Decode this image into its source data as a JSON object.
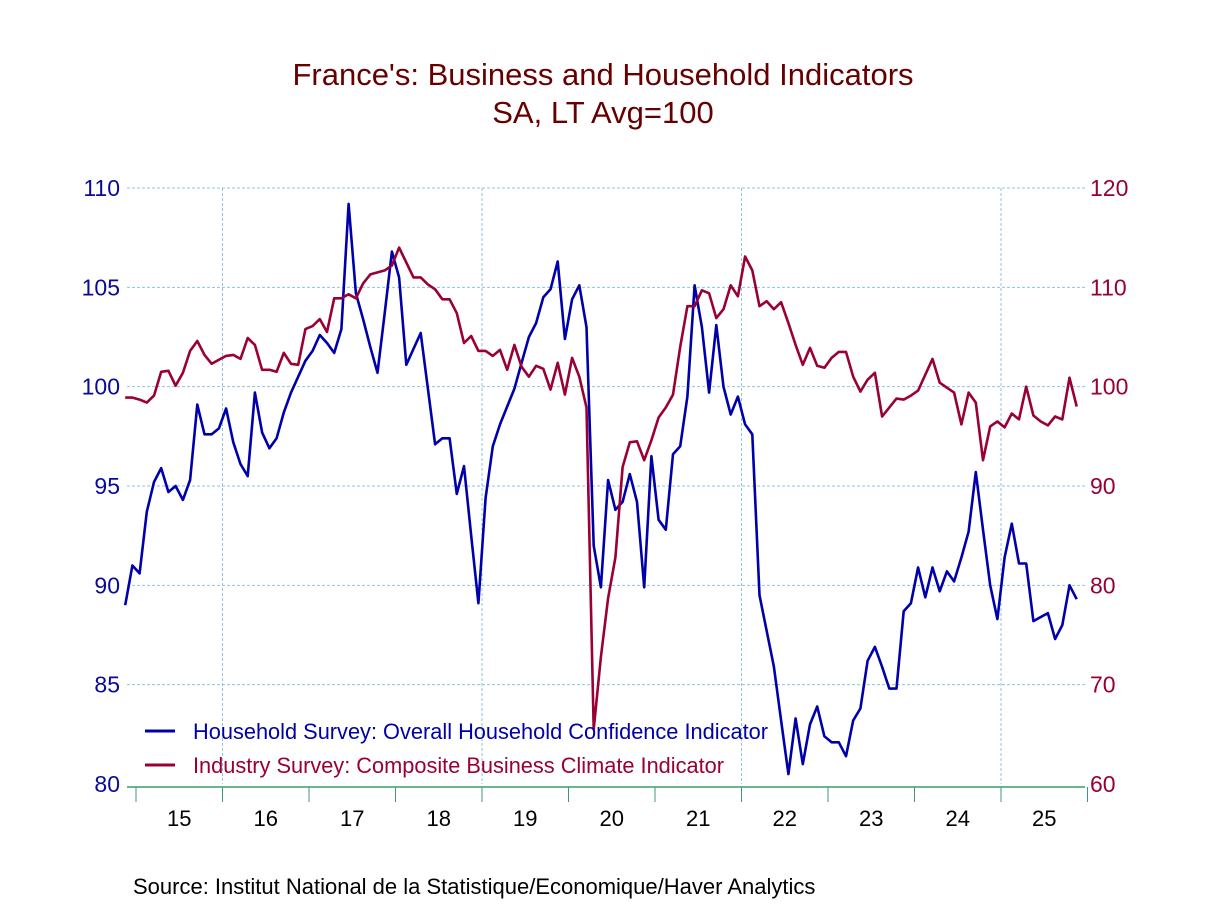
{
  "chart_data": {
    "type": "line",
    "title": "France's: Business and Household Indicators",
    "subtitle": "SA, LT Avg=100",
    "source": "Source:  Institut National de la Statistique/Economique/Haver Analytics",
    "grid": true,
    "legend_position": "bottom-left",
    "left_axis": {
      "ylim": [
        80,
        110
      ],
      "ticks": [
        "80",
        "85",
        "90",
        "95",
        "100",
        "105",
        "110"
      ],
      "color": "#0a0a9a"
    },
    "right_axis": {
      "ylim": [
        60,
        120
      ],
      "ticks": [
        "60",
        "70",
        "80",
        "90",
        "100",
        "110",
        "120"
      ],
      "color": "#990033"
    },
    "x_tick_labels": [
      "15",
      "16",
      "17",
      "18",
      "19",
      "20",
      "21",
      "22",
      "23",
      "24",
      "25"
    ],
    "x": [
      "2014-11",
      "2014-12",
      "2015-01",
      "2015-02",
      "2015-03",
      "2015-04",
      "2015-05",
      "2015-06",
      "2015-07",
      "2015-08",
      "2015-09",
      "2015-10",
      "2015-11",
      "2015-12",
      "2016-01",
      "2016-02",
      "2016-03",
      "2016-04",
      "2016-05",
      "2016-06",
      "2016-07",
      "2016-08",
      "2016-09",
      "2016-10",
      "2016-11",
      "2016-12",
      "2017-01",
      "2017-02",
      "2017-03",
      "2017-04",
      "2017-05",
      "2017-06",
      "2017-07",
      "2017-08",
      "2017-09",
      "2017-10",
      "2017-11",
      "2017-12",
      "2018-01",
      "2018-02",
      "2018-03",
      "2018-04",
      "2018-05",
      "2018-06",
      "2018-07",
      "2018-08",
      "2018-09",
      "2018-10",
      "2018-11",
      "2018-12",
      "2019-01",
      "2019-02",
      "2019-03",
      "2019-04",
      "2019-05",
      "2019-06",
      "2019-07",
      "2019-08",
      "2019-09",
      "2019-10",
      "2019-11",
      "2019-12",
      "2020-01",
      "2020-02",
      "2020-03",
      "2020-04",
      "2020-05",
      "2020-06",
      "2020-07",
      "2020-08",
      "2020-09",
      "2020-10",
      "2020-11",
      "2020-12",
      "2021-01",
      "2021-02",
      "2021-03",
      "2021-04",
      "2021-05",
      "2021-06",
      "2021-07",
      "2021-08",
      "2021-09",
      "2021-10",
      "2021-11",
      "2021-12",
      "2022-01",
      "2022-02",
      "2022-03",
      "2022-04",
      "2022-05",
      "2022-06",
      "2022-07",
      "2022-08",
      "2022-09",
      "2022-10",
      "2022-11",
      "2022-12",
      "2023-01",
      "2023-02",
      "2023-03",
      "2023-04",
      "2023-05",
      "2023-06",
      "2023-07",
      "2023-08",
      "2023-09",
      "2023-10",
      "2023-11",
      "2023-12",
      "2024-01",
      "2024-02",
      "2024-03",
      "2024-04",
      "2024-05",
      "2024-06",
      "2024-07",
      "2024-08",
      "2024-09",
      "2024-10",
      "2024-11",
      "2024-12",
      "2025-01",
      "2025-02",
      "2025-03",
      "2025-04",
      "2025-05",
      "2025-06",
      "2025-07",
      "2025-08",
      "2025-09",
      "2025-10",
      "2025-11"
    ],
    "series": [
      {
        "name": "Household Survey: Overall Household Confidence Indicator",
        "axis": "left",
        "color": "#0000aa",
        "values": [
          89.0,
          91.0,
          90.6,
          93.7,
          95.2,
          95.9,
          94.7,
          95.0,
          94.3,
          95.3,
          99.1,
          97.6,
          97.6,
          97.9,
          98.9,
          97.2,
          96.1,
          95.5,
          99.7,
          97.7,
          96.9,
          97.4,
          98.7,
          99.7,
          100.5,
          101.3,
          101.8,
          102.6,
          102.2,
          101.7,
          102.9,
          109.2,
          104.7,
          103.4,
          102.0,
          100.7,
          103.7,
          106.8,
          105.5,
          101.1,
          101.9,
          102.7,
          99.9,
          97.1,
          97.4,
          97.4,
          94.6,
          96.0,
          92.5,
          89.1,
          94.4,
          97.0,
          98.1,
          99.0,
          99.9,
          101.2,
          102.5,
          103.2,
          104.5,
          104.9,
          106.3,
          102.4,
          104.4,
          105.1,
          103.0,
          92.0,
          89.9,
          95.3,
          93.8,
          94.2,
          95.6,
          94.2,
          89.9,
          96.5,
          93.3,
          92.8,
          96.6,
          97.0,
          99.5,
          105.1,
          103.0,
          99.7,
          103.1,
          100.0,
          98.6,
          99.5,
          98.1,
          97.6,
          89.5,
          87.7,
          85.9,
          83.2,
          80.5,
          83.3,
          81.0,
          83.0,
          83.9,
          82.4,
          82.1,
          82.1,
          81.4,
          83.2,
          83.8,
          86.2,
          86.9,
          85.9,
          84.8,
          84.8,
          88.7,
          89.1,
          90.9,
          89.4,
          90.9,
          89.7,
          90.7,
          90.2,
          91.4,
          92.7,
          95.7,
          92.8,
          90.0,
          88.3,
          91.4,
          93.1,
          91.1,
          91.1,
          88.2,
          88.4,
          88.6,
          87.3,
          88.0,
          90.0,
          89.3
        ]
      },
      {
        "name": "Industry Survey: Composite Business Climate Indicator",
        "axis": "right",
        "color": "#990033",
        "values": [
          98.9,
          98.9,
          98.7,
          98.4,
          99.1,
          101.5,
          101.6,
          100.1,
          101.4,
          103.6,
          104.6,
          103.2,
          102.3,
          102.7,
          103.1,
          103.2,
          102.8,
          104.9,
          104.2,
          101.7,
          101.7,
          101.5,
          103.4,
          102.3,
          102.2,
          105.8,
          106.1,
          106.8,
          105.5,
          108.9,
          108.9,
          109.3,
          108.9,
          110.4,
          111.3,
          111.5,
          111.7,
          112.2,
          114.0,
          112.5,
          111.0,
          111.0,
          110.3,
          109.8,
          108.8,
          108.8,
          107.4,
          104.4,
          105.1,
          103.6,
          103.6,
          103.1,
          103.7,
          101.7,
          104.2,
          102.0,
          101.0,
          102.1,
          101.8,
          99.7,
          102.4,
          99.2,
          102.9,
          101.0,
          97.9,
          65.5,
          72.8,
          78.7,
          82.8,
          91.9,
          94.4,
          94.5,
          92.6,
          94.6,
          96.9,
          97.9,
          99.2,
          104.0,
          108.1,
          108.1,
          109.7,
          109.4,
          106.9,
          107.8,
          110.2,
          109.1,
          113.1,
          111.7,
          108.1,
          108.6,
          107.8,
          108.5,
          106.4,
          104.2,
          102.2,
          103.9,
          102.1,
          101.9,
          102.9,
          103.5,
          103.5,
          101.0,
          99.5,
          100.7,
          101.4,
          97.0,
          97.9,
          98.8,
          98.7,
          99.1,
          99.6,
          101.2,
          102.8,
          100.4,
          99.9,
          99.4,
          96.2,
          99.4,
          98.4,
          92.6,
          96.0,
          96.5,
          95.9,
          97.3,
          96.7,
          100.0,
          97.1,
          96.5,
          96.1,
          97.0,
          96.7,
          100.9,
          98.0
        ]
      }
    ]
  }
}
